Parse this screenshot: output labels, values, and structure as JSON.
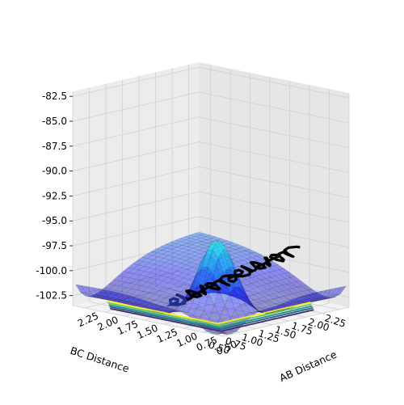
{
  "chart_data": {
    "type": "surface3d",
    "title": "",
    "xlabel": "AB Distance",
    "ylabel": "BC Distance",
    "zlabel": "",
    "x_ticks": [
      "0.50",
      "0.75",
      "1.00",
      "1.25",
      "1.50",
      "1.75",
      "2.00",
      "2.25"
    ],
    "y_ticks": [
      "0.50",
      "0.75",
      "1.00",
      "1.25",
      "1.50",
      "1.75",
      "2.00",
      "2.25"
    ],
    "z_ticks": [
      "-82.5",
      "-85.0",
      "-87.5",
      "-90.0",
      "-92.5",
      "-95.0",
      "-97.5",
      "-100.0",
      "-102.5"
    ],
    "xlim": [
      0.5,
      2.4
    ],
    "ylim": [
      0.5,
      2.4
    ],
    "zlim": [
      -103.5,
      -82.0
    ],
    "grid": true,
    "colormap": "jet",
    "surface_alpha": 0.4,
    "contour_colormap": "viridis",
    "trajectory_color": "#000000",
    "trajectory_end_color": "#1f2f8f"
  }
}
